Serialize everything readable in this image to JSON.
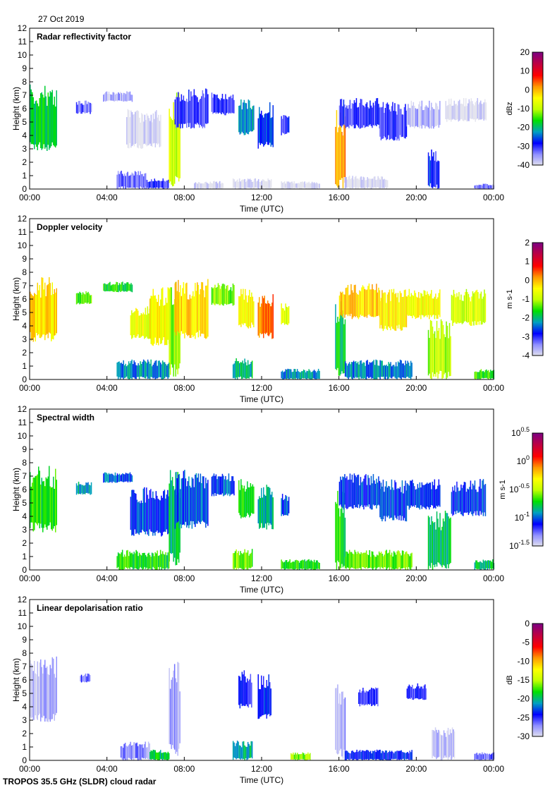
{
  "date": "27 Oct 2019",
  "footer": "TROPOS 35.5 GHz (SLDR) cloud radar",
  "colormap": [
    "#e4e4ee",
    "#9090ff",
    "#0000ff",
    "#00a0c0",
    "#00e000",
    "#c0ff00",
    "#ffff00",
    "#ff9900",
    "#ff0000",
    "#c00040",
    "#800080"
  ],
  "chart_data": [
    {
      "type": "heatmap",
      "title": "Radar reflectivity factor",
      "xlabel": "Time (UTC)",
      "ylabel": "Height (km)",
      "xlim": [
        0,
        24
      ],
      "ylim": [
        0,
        12
      ],
      "xticks": [
        "00:00",
        "04:00",
        "08:00",
        "12:00",
        "16:00",
        "20:00",
        "00:00"
      ],
      "yticks": [
        "0",
        "1",
        "2",
        "3",
        "4",
        "5",
        "6",
        "7",
        "8",
        "9",
        "10",
        "11",
        "12"
      ],
      "cbar": {
        "label": "dBz",
        "range": [
          -40,
          20
        ],
        "ticks": [
          "20",
          "10",
          "0",
          "-10",
          "-20",
          "-30",
          "-40"
        ]
      },
      "segments": [
        [
          0,
          1.4,
          2.8,
          7.8,
          -18
        ],
        [
          2.4,
          3.2,
          5.6,
          6.6,
          -32
        ],
        [
          3.8,
          5.3,
          6.5,
          7.3,
          -36
        ],
        [
          5,
          6.8,
          3,
          6,
          -40
        ],
        [
          7.2,
          7.8,
          0.2,
          7.5,
          -8
        ],
        [
          7.5,
          9.2,
          4.5,
          7.5,
          -30
        ],
        [
          9.4,
          10.6,
          5.5,
          7.2,
          -30
        ],
        [
          10.8,
          11.6,
          4,
          6.8,
          -22
        ],
        [
          11.8,
          12.6,
          3,
          6.5,
          -26
        ],
        [
          13,
          13.4,
          4,
          5.7,
          -30
        ],
        [
          15.8,
          16.3,
          0,
          6,
          2
        ],
        [
          16,
          18.1,
          4.5,
          6.8,
          -30
        ],
        [
          18.1,
          19.5,
          3.6,
          6.5,
          -30
        ],
        [
          19.5,
          21.2,
          4.5,
          6.6,
          -36
        ],
        [
          20.6,
          21.2,
          0,
          3,
          -28
        ],
        [
          21.5,
          23.6,
          5,
          6.8,
          -40
        ],
        [
          4.5,
          6,
          0,
          1.4,
          -33
        ],
        [
          6,
          7.2,
          0,
          0.8,
          -30
        ],
        [
          8.5,
          10,
          0,
          0.6,
          -40
        ],
        [
          10.5,
          12.5,
          0,
          0.8,
          -40
        ],
        [
          13,
          15,
          0,
          0.6,
          -40
        ],
        [
          16.3,
          18.5,
          0,
          1,
          -40
        ],
        [
          23,
          24,
          0,
          0.4,
          -34
        ]
      ]
    },
    {
      "type": "heatmap",
      "title": "Doppler velocity",
      "xlabel": "Time (UTC)",
      "ylabel": "Height (km)",
      "xlim": [
        0,
        24
      ],
      "ylim": [
        0,
        12
      ],
      "xticks": [
        "00:00",
        "04:00",
        "08:00",
        "12:00",
        "16:00",
        "20:00",
        "00:00"
      ],
      "yticks": [
        "0",
        "1",
        "2",
        "3",
        "4",
        "5",
        "6",
        "7",
        "8",
        "9",
        "10",
        "11",
        "12"
      ],
      "cbar": {
        "label": "m s-1",
        "range": [
          -4,
          2
        ],
        "ticks": [
          "2",
          "1",
          "0",
          "-1",
          "-2",
          "-3",
          "-4"
        ]
      },
      "segments": [
        [
          0,
          1.4,
          2.8,
          7.8,
          -0.2
        ],
        [
          2.4,
          3.2,
          5.6,
          6.6,
          -1.4
        ],
        [
          3.8,
          5.3,
          6.5,
          7.3,
          -1.6
        ],
        [
          5.2,
          6.2,
          3,
          5.6,
          -0.6
        ],
        [
          6.2,
          7.2,
          2.5,
          7,
          -0.4
        ],
        [
          7.2,
          7.8,
          0.2,
          7.5,
          -1.2
        ],
        [
          7.5,
          9.2,
          3,
          7.5,
          -0.2
        ],
        [
          9.4,
          10.6,
          5.5,
          7.2,
          -1.3
        ],
        [
          10.8,
          11.6,
          3.8,
          6.8,
          -0.4
        ],
        [
          11.8,
          12.6,
          3,
          6.5,
          0.3
        ],
        [
          13,
          13.4,
          4,
          5.7,
          -0.8
        ],
        [
          15.8,
          16.3,
          0,
          6,
          -1.8
        ],
        [
          16,
          18.1,
          4.5,
          7.2,
          -0.1
        ],
        [
          18.1,
          19.5,
          3.6,
          6.8,
          -0.3
        ],
        [
          19.5,
          21.2,
          4.5,
          6.8,
          -0.5
        ],
        [
          20.6,
          21.8,
          0,
          4.5,
          -1
        ],
        [
          21.8,
          23.6,
          4,
          6.8,
          -0.8
        ],
        [
          4.5,
          7.2,
          0,
          1.5,
          -2.3
        ],
        [
          10.5,
          11.5,
          0,
          1.6,
          -2
        ],
        [
          13,
          15,
          0,
          0.8,
          -2.2
        ],
        [
          16.3,
          19.8,
          0,
          1.5,
          -2.3
        ],
        [
          23,
          24,
          0,
          0.8,
          -1.5
        ]
      ]
    },
    {
      "type": "heatmap",
      "title": "Spectral width",
      "xlabel": "Time (UTC)",
      "ylabel": "Height (km)",
      "xlim": [
        0,
        24
      ],
      "ylim": [
        0,
        12
      ],
      "xticks": [
        "00:00",
        "04:00",
        "08:00",
        "12:00",
        "16:00",
        "20:00",
        "00:00"
      ],
      "yticks": [
        "0",
        "1",
        "2",
        "3",
        "4",
        "5",
        "6",
        "7",
        "8",
        "9",
        "10",
        "11",
        "12"
      ],
      "cbar": {
        "label": "m s-1",
        "range": [
          -1.5,
          0.5
        ],
        "ticks": [
          "10^0.5",
          "10^0",
          "10^-0.5",
          "10^-1",
          "10^-1.5"
        ]
      },
      "segments": [
        [
          0,
          1.4,
          2.8,
          7.8,
          -0.7
        ],
        [
          2.4,
          3.2,
          5.6,
          6.6,
          -0.9
        ],
        [
          3.8,
          5.3,
          6.5,
          7.3,
          -1
        ],
        [
          5.2,
          7.2,
          2.5,
          6.2,
          -1.05
        ],
        [
          7.2,
          7.8,
          0.2,
          7.5,
          -0.8
        ],
        [
          7.5,
          9.2,
          3,
          7.5,
          -1
        ],
        [
          9.4,
          10.6,
          5.5,
          7.2,
          -1
        ],
        [
          10.8,
          11.6,
          3.8,
          6.8,
          -0.75
        ],
        [
          11.8,
          12.6,
          3,
          6.5,
          -0.85
        ],
        [
          13,
          13.4,
          4,
          5.7,
          -1
        ],
        [
          15.8,
          16.3,
          0,
          6,
          -0.7
        ],
        [
          16,
          18.1,
          4.5,
          7.2,
          -1.05
        ],
        [
          18.1,
          19.5,
          3.6,
          6.8,
          -1.05
        ],
        [
          19.5,
          21.2,
          4.5,
          6.8,
          -1.05
        ],
        [
          20.6,
          21.8,
          0,
          4.5,
          -0.8
        ],
        [
          21.8,
          23.6,
          4,
          6.8,
          -1.05
        ],
        [
          4.5,
          7.2,
          0,
          1.5,
          -0.7
        ],
        [
          10.5,
          11.5,
          0,
          1.6,
          -0.6
        ],
        [
          13,
          15,
          0,
          0.8,
          -0.7
        ],
        [
          16.3,
          19.8,
          0,
          1.5,
          -0.6
        ],
        [
          23,
          24,
          0,
          0.8,
          -0.8
        ]
      ]
    },
    {
      "type": "heatmap",
      "title": "Linear depolarisation ratio",
      "xlabel": "Time (UTC)",
      "ylabel": "Height (km)",
      "xlim": [
        0,
        24
      ],
      "ylim": [
        0,
        12
      ],
      "xticks": [
        "00:00",
        "04:00",
        "08:00",
        "12:00",
        "16:00",
        "20:00",
        "00:00"
      ],
      "yticks": [
        "0",
        "1",
        "2",
        "3",
        "4",
        "5",
        "6",
        "7",
        "8",
        "9",
        "10",
        "11",
        "12"
      ],
      "cbar": {
        "label": "dB",
        "range": [
          -30,
          0
        ],
        "ticks": [
          "0",
          "-5",
          "-10",
          "-15",
          "-20",
          "-25",
          "-30"
        ]
      },
      "segments": [
        [
          0,
          1.4,
          2.8,
          7.8,
          -28.5
        ],
        [
          2.6,
          3.1,
          5.8,
          6.5,
          -26
        ],
        [
          7.2,
          7.8,
          0.2,
          7.4,
          -28
        ],
        [
          10.8,
          11.5,
          3.8,
          6.8,
          -25
        ],
        [
          11.8,
          12.5,
          3,
          6.5,
          -24
        ],
        [
          15.8,
          16.3,
          0,
          6,
          -28
        ],
        [
          17,
          18,
          4,
          5.5,
          -25
        ],
        [
          19.5,
          20.5,
          4.5,
          5.8,
          -25
        ],
        [
          20.8,
          22,
          0,
          2.5,
          -28.5
        ],
        [
          4.7,
          6.2,
          0,
          1.4,
          -27
        ],
        [
          6.2,
          7.2,
          0,
          0.8,
          -19
        ],
        [
          10.5,
          11.5,
          0,
          1.5,
          -20
        ],
        [
          13.5,
          14.5,
          0,
          0.6,
          -16
        ],
        [
          16.3,
          19.8,
          0,
          0.8,
          -24
        ],
        [
          23,
          24,
          0,
          0.6,
          -26
        ]
      ]
    }
  ]
}
